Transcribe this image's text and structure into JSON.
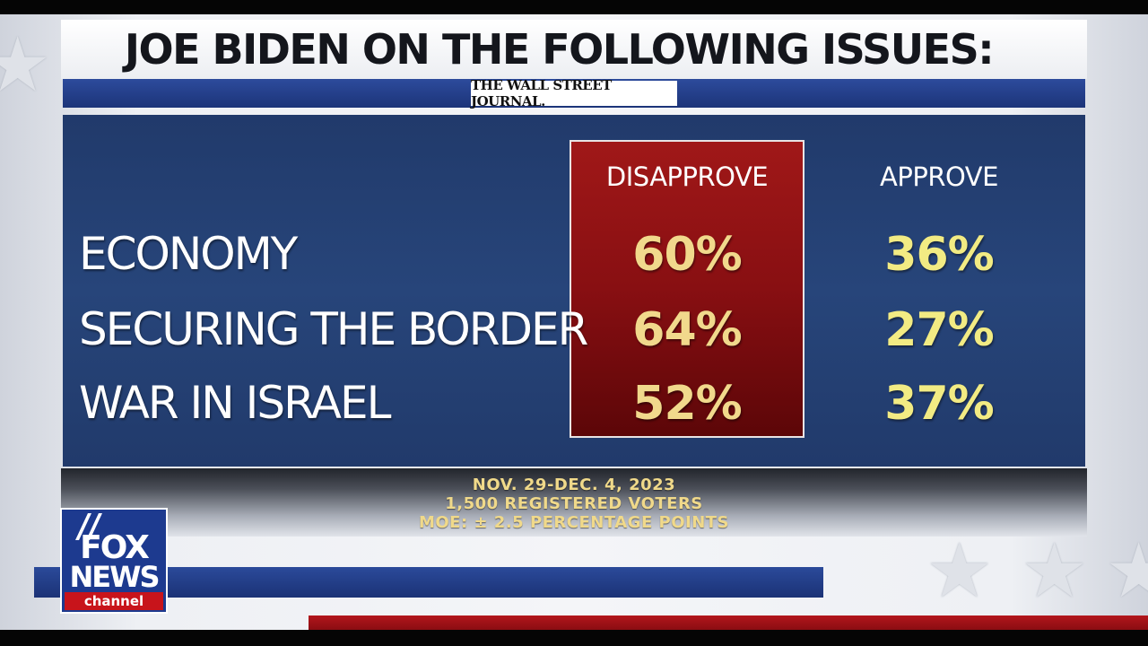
{
  "header": {
    "title": "JOE BIDEN ON THE FOLLOWING ISSUES:",
    "source": "THE WALL STREET JOURNAL."
  },
  "chart_data": {
    "type": "table",
    "columns": [
      "DISAPPROVE",
      "APPROVE"
    ],
    "rows": [
      {
        "label": "ECONOMY",
        "disapprove": "60%",
        "approve": "36%"
      },
      {
        "label": "SECURING THE BORDER",
        "disapprove": "64%",
        "approve": "27%"
      },
      {
        "label": "WAR IN ISRAEL",
        "disapprove": "52%",
        "approve": "37%"
      }
    ],
    "series": [
      {
        "name": "DISAPPROVE",
        "values": [
          60,
          64,
          52
        ],
        "color": "#f1d98c"
      },
      {
        "name": "APPROVE",
        "values": [
          36,
          27,
          37
        ],
        "color": "#f2eb83"
      }
    ],
    "categories": [
      "ECONOMY",
      "SECURING THE BORDER",
      "WAR IN ISRAEL"
    ],
    "highlight_color": "#8b1014"
  },
  "footer": {
    "dates": "NOV. 29-DEC. 4, 2023",
    "sample": "1,500 REGISTERED VOTERS",
    "moe": "MOE: ± 2.5 PERCENTAGE POINTS"
  },
  "logo": {
    "line1": "FOX",
    "line2": "NEWS",
    "line3": "channel"
  },
  "colors": {
    "panel_blue": "#213a6b",
    "band_blue": "#1f3680",
    "accent_red": "#b3161c",
    "footnote_gold": "#f0d98a"
  }
}
